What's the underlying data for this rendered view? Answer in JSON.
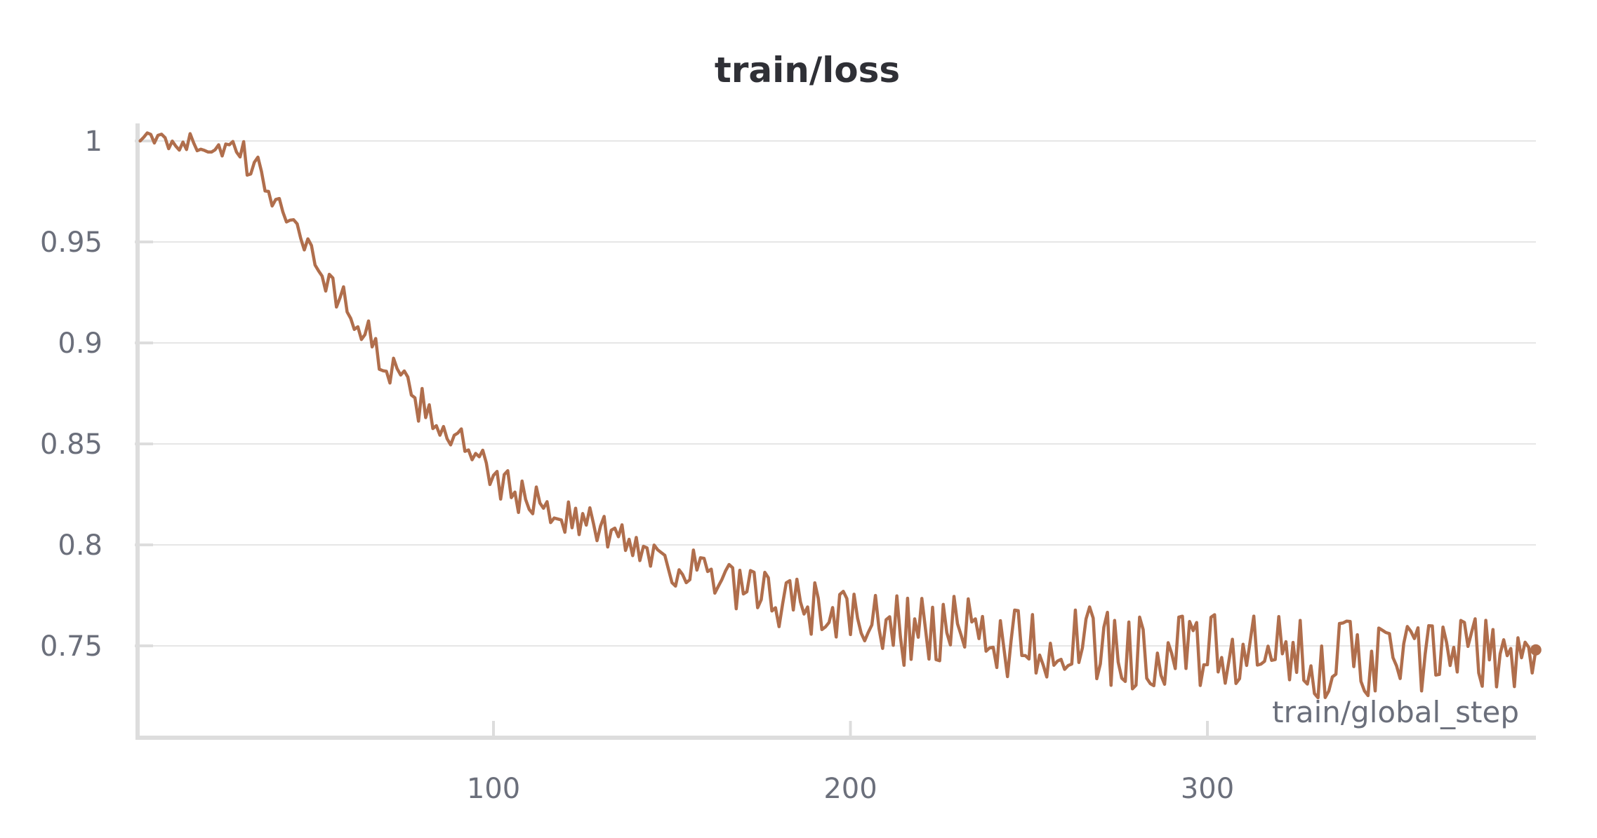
{
  "chart_data": {
    "type": "line",
    "title": "train/loss",
    "xlabel": "train/global_step",
    "ylabel": "",
    "xlim": [
      1,
      392
    ],
    "ylim": [
      0.704,
      1.004
    ],
    "x_ticks": [
      100,
      200,
      300
    ],
    "x_tick_labels": [
      "100",
      "200",
      "300"
    ],
    "y_ticks": [
      1,
      0.95,
      0.9,
      0.85,
      0.8,
      0.75
    ],
    "y_tick_labels": [
      "1",
      "0.95",
      "0.9",
      "0.85",
      "0.8",
      "0.75"
    ],
    "grid": "horizontal",
    "legend": "none",
    "series": [
      {
        "color": "#b06e4c",
        "end_marker": true,
        "key_points": [
          [
            1,
            1.0
          ],
          [
            12,
            1.0
          ],
          [
            28,
            0.995
          ],
          [
            36,
            0.98
          ],
          [
            44,
            0.96
          ],
          [
            52,
            0.935
          ],
          [
            60,
            0.915
          ],
          [
            68,
            0.895
          ],
          [
            76,
            0.875
          ],
          [
            84,
            0.862
          ],
          [
            92,
            0.848
          ],
          [
            100,
            0.832
          ],
          [
            110,
            0.822
          ],
          [
            120,
            0.815
          ],
          [
            130,
            0.808
          ],
          [
            140,
            0.8
          ],
          [
            150,
            0.792
          ],
          [
            160,
            0.783
          ],
          [
            170,
            0.776
          ],
          [
            180,
            0.772
          ],
          [
            190,
            0.768
          ],
          [
            200,
            0.764
          ],
          [
            210,
            0.76
          ],
          [
            230,
            0.755
          ],
          [
            250,
            0.752
          ],
          [
            270,
            0.749
          ],
          [
            300,
            0.746
          ],
          [
            330,
            0.744
          ],
          [
            360,
            0.744
          ],
          [
            392,
            0.748
          ]
        ]
      }
    ]
  },
  "colors": {
    "line": "#b06e4c",
    "grid": "#e6e6e6",
    "axis": "#dddddd",
    "text": "#2f3036",
    "tick_text": "#6b6f7b"
  }
}
